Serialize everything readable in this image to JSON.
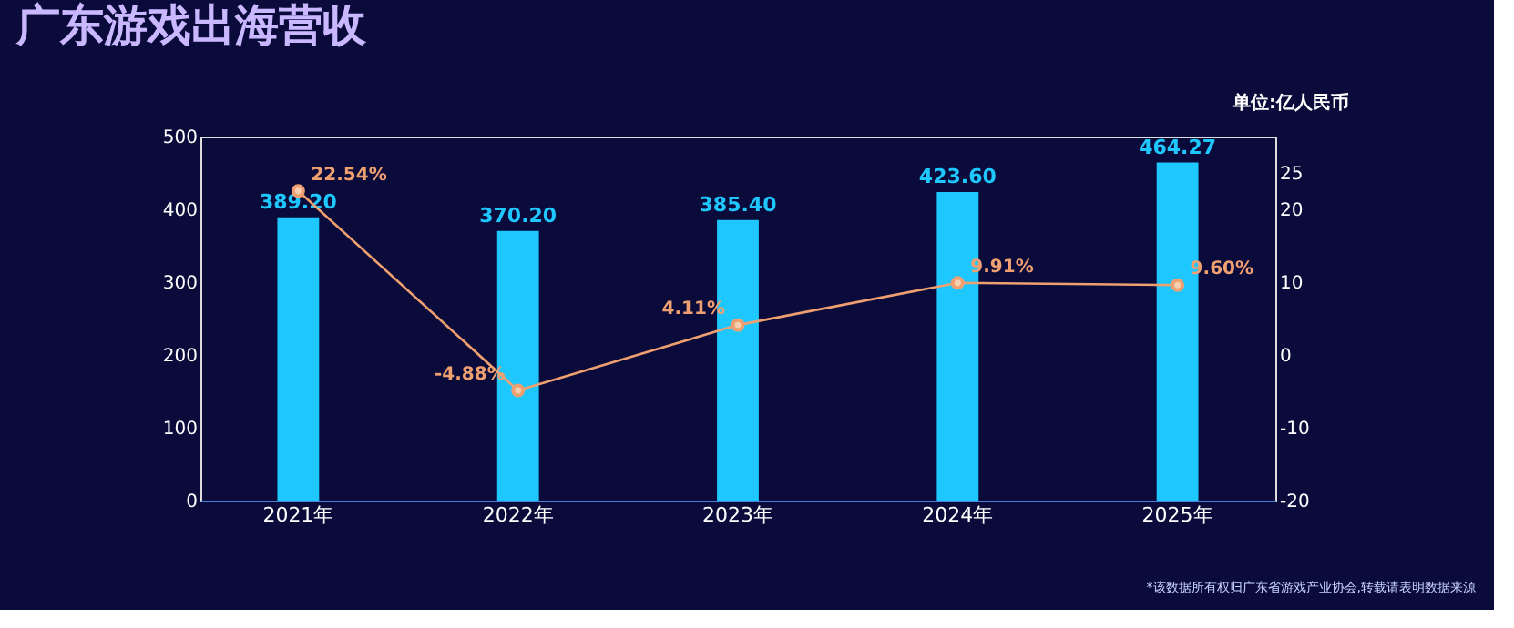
{
  "chart_data": {
    "type": "bar",
    "title": "广东游戏出海营收",
    "y2label": "单位:亿人民币",
    "categories": [
      "2021年",
      "2022年",
      "2023年",
      "2024年",
      "2025年"
    ],
    "series": [
      {
        "color": "#1ec8ff",
        "values": [
          389.2,
          370.2,
          385.4,
          423.6,
          464.27
        ],
        "value_labels": [
          "389.20",
          "370.20",
          "385.40",
          "423.60",
          "464.27"
        ]
      },
      {
        "type": "line",
        "axis": "y2",
        "color": "#f0a070",
        "marker": "circle",
        "line_style": "solid",
        "values": [
          22.54,
          -4.88,
          4.11,
          9.91,
          9.6
        ],
        "value_labels": [
          "22.54%",
          "-4.88%",
          "4.11%",
          "9.91%",
          "9.60%"
        ]
      }
    ],
    "ylim": [
      0,
      500
    ],
    "yticks": [
      0,
      100,
      200,
      300,
      400,
      500
    ],
    "y2lim": [
      -20,
      30
    ],
    "y2ticks": [
      -20,
      -10,
      0,
      10,
      20,
      25
    ],
    "grid": false,
    "annotations": [
      "*该数据所有权归广东省游戏产业协会,转载请表明数据来源"
    ]
  }
}
